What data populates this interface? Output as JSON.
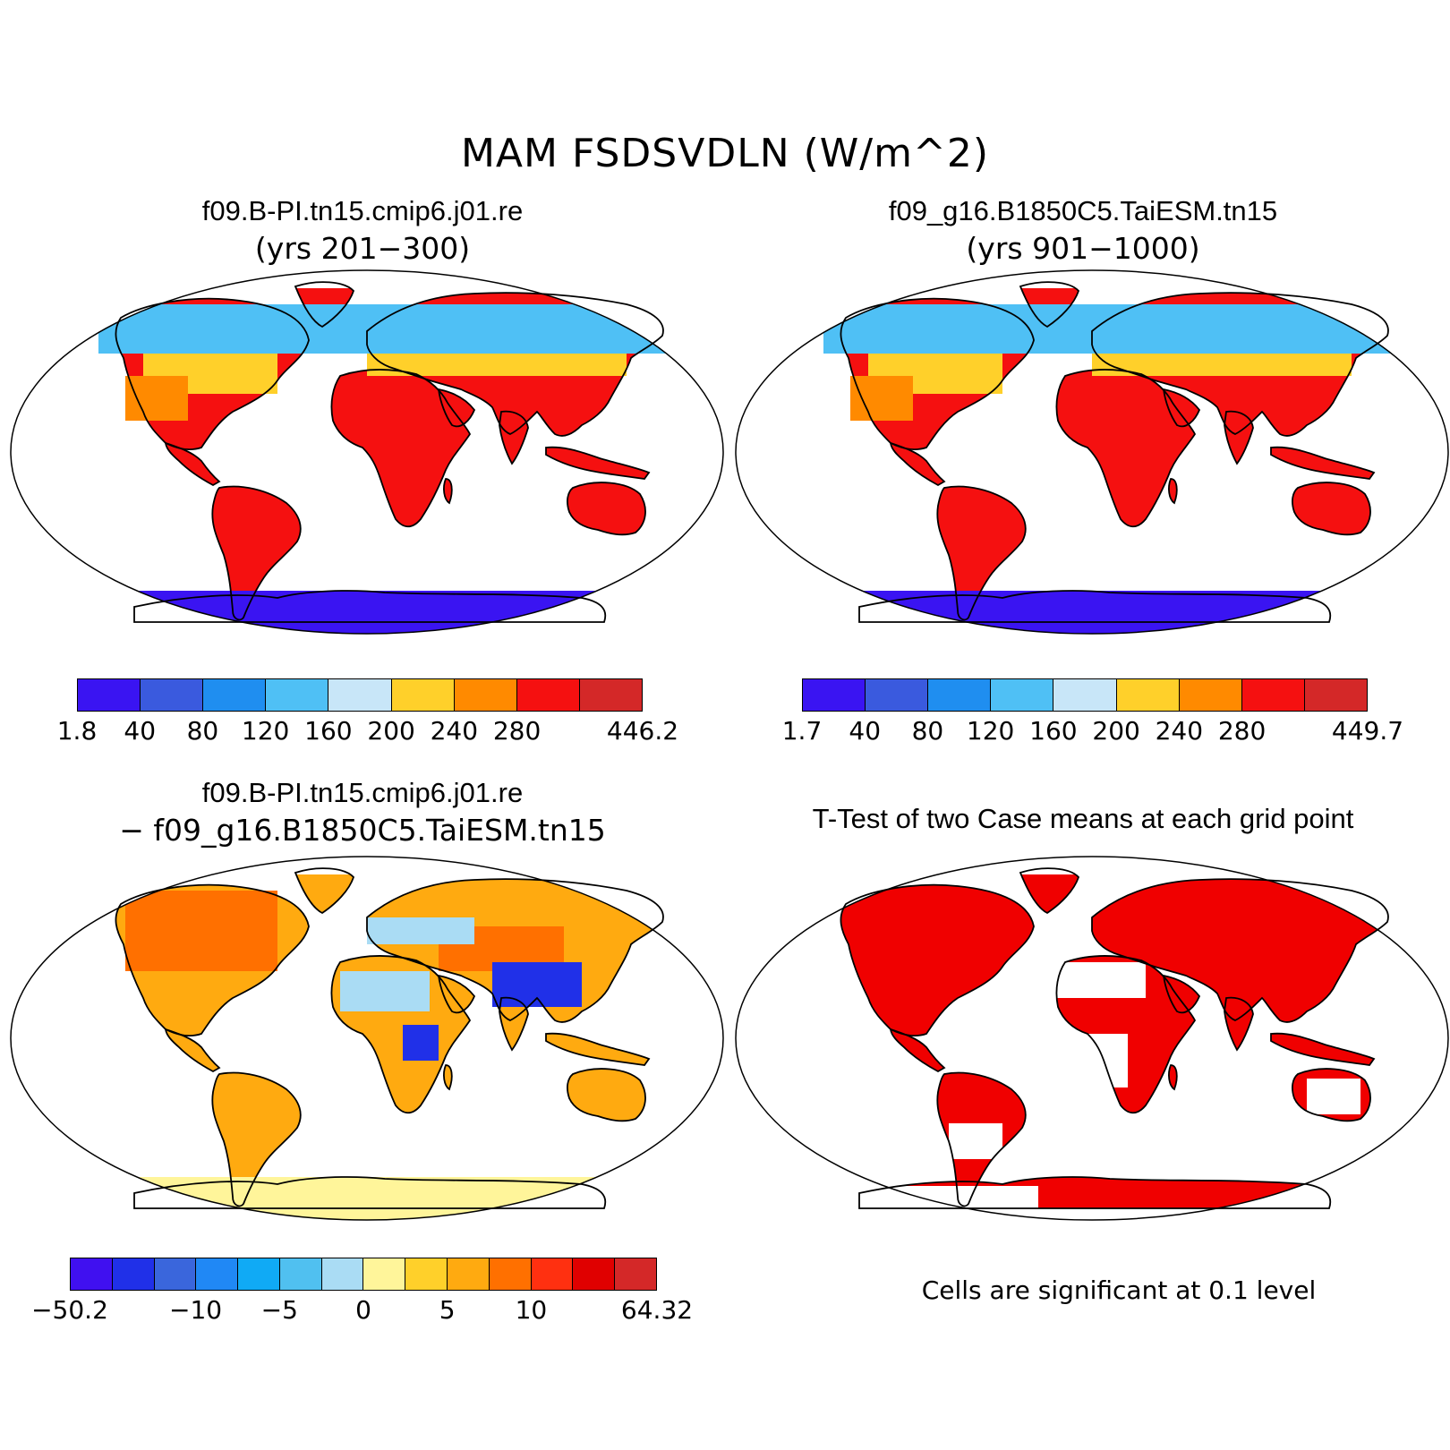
{
  "figure_title": "MAM FSDSVDLN (W/m^2)",
  "panels": [
    {
      "title": "f09.B-PI.tn15.cmip6.j01.re",
      "subtitle": "(yrs 201−300)"
    },
    {
      "title": "f09_g16.B1850C5.TaiESM.tn15",
      "subtitle": "(yrs 901−1000)"
    },
    {
      "title": "f09.B-PI.tn15.cmip6.j01.re",
      "subtitle": "− f09_g16.B1850C5.TaiESM.tn15"
    },
    {
      "title": "T-Test of two Case means at each grid point",
      "subtitle": ""
    }
  ],
  "colorbars": [
    {
      "colors": [
        "#3a14f2",
        "#3a5ade",
        "#1f8ef0",
        "#4fc0f5",
        "#c8e6f8",
        "#ffd02a",
        "#ff8a00",
        "#f51010",
        "#d42828"
      ],
      "ticks": [
        "1.8",
        "40",
        "80",
        "120",
        "160",
        "200",
        "240",
        "280",
        "446.2"
      ]
    },
    {
      "colors": [
        "#3a14f2",
        "#3a5ade",
        "#1f8ef0",
        "#4fc0f5",
        "#c8e6f8",
        "#ffd02a",
        "#ff8a00",
        "#f51010",
        "#d42828"
      ],
      "ticks": [
        "1.7",
        "40",
        "80",
        "120",
        "160",
        "200",
        "240",
        "280",
        "449.7"
      ]
    },
    {
      "colors": [
        "#4010f0",
        "#2030e8",
        "#3a66dc",
        "#2088f5",
        "#10aaf5",
        "#50c0f0",
        "#aadcf4",
        "#fff59a",
        "#ffd02a",
        "#ffaa10",
        "#ff7000",
        "#ff3010",
        "#e00000",
        "#d42828"
      ],
      "ticks": [
        "−50.2",
        "−10",
        "−5",
        "0",
        "5",
        "10",
        "64.32"
      ]
    }
  ],
  "significance_note": "Cells are significant at 0.1 level",
  "significance_color": "#f00000"
}
